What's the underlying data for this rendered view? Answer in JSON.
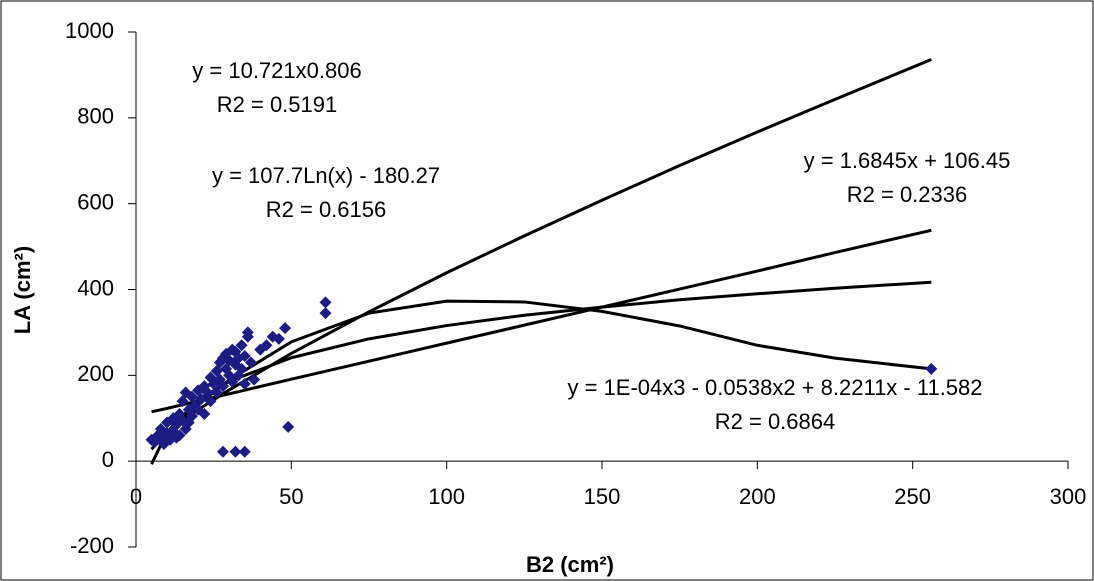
{
  "chart_data": {
    "type": "scatter",
    "x_label": "B2 (cm²)",
    "y_label": "LA (cm²)",
    "xlim": [
      0,
      300
    ],
    "ylim": [
      -200,
      1000
    ],
    "xticks": [
      0,
      50,
      100,
      150,
      200,
      250,
      300
    ],
    "yticks": [
      -200,
      0,
      200,
      400,
      600,
      800,
      1000
    ],
    "grid": false,
    "series": [
      {
        "type": "scatter",
        "color": "#1c1c84",
        "x": [
          5,
          6,
          7,
          8,
          8,
          9,
          10,
          10,
          11,
          12,
          12,
          13,
          13,
          14,
          14,
          15,
          15,
          16,
          16,
          17,
          17,
          18,
          18,
          19,
          20,
          20,
          21,
          22,
          22,
          23,
          24,
          24,
          25,
          26,
          26,
          27,
          27,
          28,
          28,
          29,
          29,
          30,
          30,
          31,
          31,
          32,
          32,
          33,
          33,
          34,
          34,
          35,
          35,
          36,
          36,
          37,
          38,
          40,
          42,
          44,
          46,
          48,
          28,
          32,
          35,
          49,
          61,
          61,
          256
        ],
        "values": [
          50,
          45,
          60,
          55,
          75,
          40,
          65,
          90,
          50,
          70,
          100,
          55,
          85,
          110,
          60,
          140,
          95,
          160,
          75,
          120,
          90,
          150,
          105,
          130,
          165,
          120,
          145,
          175,
          110,
          160,
          195,
          140,
          180,
          210,
          160,
          230,
          190,
          240,
          175,
          215,
          250,
          200,
          235,
          260,
          185,
          225,
          255,
          240,
          200,
          270,
          215,
          245,
          180,
          300,
          290,
          230,
          190,
          260,
          270,
          290,
          285,
          310,
          22,
          22,
          22,
          80,
          370,
          345,
          215
        ]
      },
      {
        "type": "line",
        "color": "#000000",
        "x": [
          5,
          10,
          20,
          30,
          50,
          75,
          100,
          125,
          150,
          175,
          200,
          225,
          256
        ],
        "values": [
          39,
          69,
          120,
          166,
          251,
          348,
          439,
          525,
          608,
          689,
          767,
          843,
          936
        ]
      },
      {
        "type": "line",
        "color": "#000000",
        "x": [
          5,
          10,
          20,
          30,
          50,
          75,
          100,
          125,
          150,
          175,
          200,
          225,
          256
        ],
        "values": [
          -7,
          68,
          142,
          186,
          241,
          285,
          316,
          340,
          359,
          376,
          390,
          403,
          417
        ]
      },
      {
        "type": "line",
        "color": "#000000",
        "x": [
          5,
          10,
          20,
          30,
          50,
          75,
          100,
          125,
          150,
          175,
          200,
          225,
          256
        ],
        "values": [
          115,
          123,
          140,
          157,
          191,
          233,
          275,
          317,
          359,
          401,
          443,
          486,
          538
        ]
      },
      {
        "type": "line",
        "color": "#000000",
        "x": [
          5,
          10,
          20,
          30,
          50,
          75,
          100,
          125,
          150,
          175,
          200,
          225,
          256
        ],
        "values": [
          28,
          65,
          132,
          189,
          278,
          345,
          373,
          371,
          349,
          315,
          270,
          240,
          215
        ]
      }
    ],
    "annotations": [
      [
        "y = 10.721x0.806",
        "R2 = 0.5191"
      ],
      [
        "y = 107.7Ln(x) - 180.27",
        "R2 = 0.6156"
      ],
      [
        "y = 1.6845x + 106.45",
        "R2 = 0.2336"
      ],
      [
        "y = 1E-04x3 - 0.0538x2 + 8.2211x - 11.582",
        "R2 = 0.6864"
      ]
    ]
  }
}
